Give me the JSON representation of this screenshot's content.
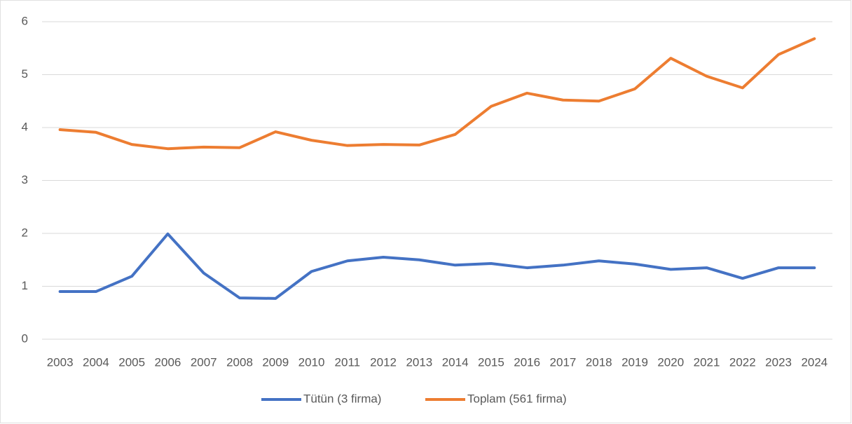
{
  "chart_data": {
    "type": "line",
    "categories": [
      "2003",
      "2004",
      "2005",
      "2006",
      "2007",
      "2008",
      "2009",
      "2010",
      "2011",
      "2012",
      "2013",
      "2014",
      "2015",
      "2016",
      "2017",
      "2018",
      "2019",
      "2020",
      "2021",
      "2022",
      "2023",
      "2024"
    ],
    "series": [
      {
        "name": "Tütün (3 firma)",
        "color": "#4472c4",
        "values": [
          0.9,
          0.9,
          1.19,
          1.99,
          1.25,
          0.78,
          0.77,
          1.28,
          1.48,
          1.55,
          1.5,
          1.4,
          1.43,
          1.35,
          1.4,
          1.48,
          1.42,
          1.32,
          1.35,
          1.15,
          1.35,
          1.35
        ]
      },
      {
        "name": "Toplam (561 firma)",
        "color": "#ed7d31",
        "values": [
          3.96,
          3.91,
          3.68,
          3.6,
          3.63,
          3.62,
          3.92,
          3.76,
          3.66,
          3.68,
          3.67,
          3.87,
          4.4,
          4.65,
          4.52,
          4.5,
          4.73,
          5.31,
          4.97,
          4.75,
          5.38,
          5.68
        ]
      }
    ],
    "ylim": [
      0,
      6
    ],
    "yticks": [
      0,
      1,
      2,
      3,
      4,
      5,
      6
    ],
    "grid": true,
    "legend": "bottom"
  }
}
